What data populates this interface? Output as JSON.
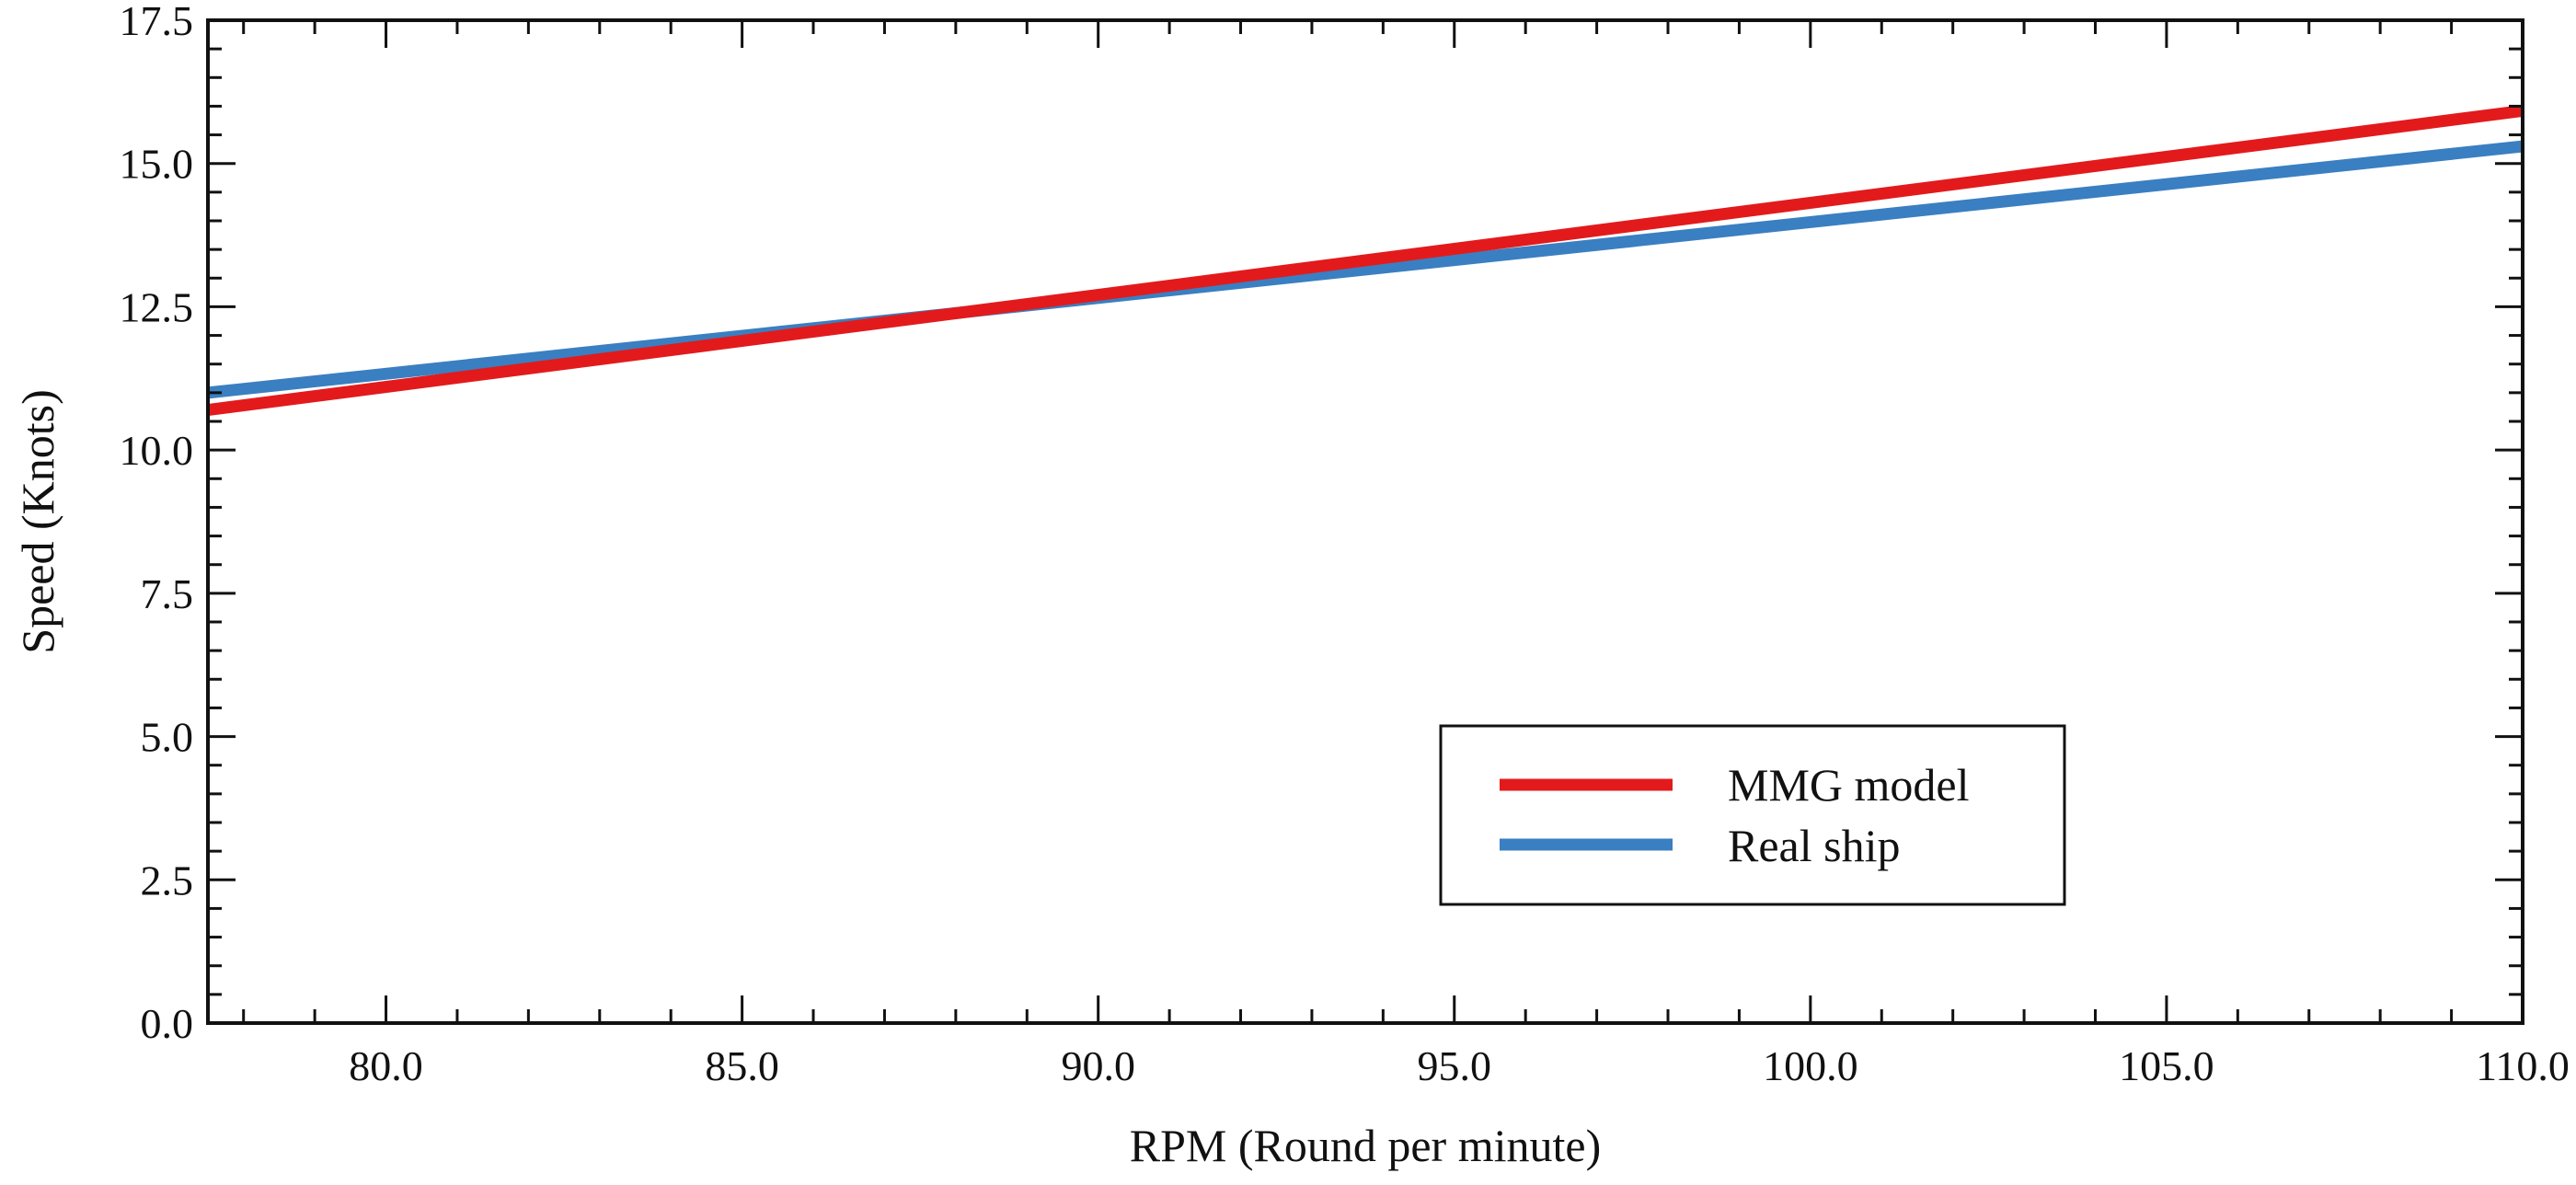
{
  "chart_data": {
    "type": "line",
    "title": "",
    "xlabel": "RPM (Round per minute)",
    "ylabel": "Speed (Knots)",
    "xlim": [
      77.5,
      110.0
    ],
    "ylim": [
      0.0,
      17.5
    ],
    "xticks": [
      80.0,
      85.0,
      90.0,
      95.0,
      100.0,
      105.0,
      110.0
    ],
    "xtick_labels": [
      "80.0",
      "85.0",
      "90.0",
      "95.0",
      "100.0",
      "105.0",
      "110.0"
    ],
    "yticks": [
      0.0,
      2.5,
      5.0,
      7.5,
      10.0,
      12.5,
      15.0,
      17.5
    ],
    "ytick_labels": [
      "0.0",
      "2.5",
      "5.0",
      "7.5",
      "10.0",
      "12.5",
      "15.0",
      "17.5"
    ],
    "grid": false,
    "legend_position": "bottom-right",
    "series": [
      {
        "name": "MMG model",
        "color": "#e31a1c",
        "x": [
          77.5,
          110.0
        ],
        "y": [
          10.7,
          15.92
        ]
      },
      {
        "name": "Real ship",
        "color": "#3a7fc1",
        "x": [
          77.5,
          110.0
        ],
        "y": [
          11.0,
          15.3
        ]
      }
    ]
  }
}
